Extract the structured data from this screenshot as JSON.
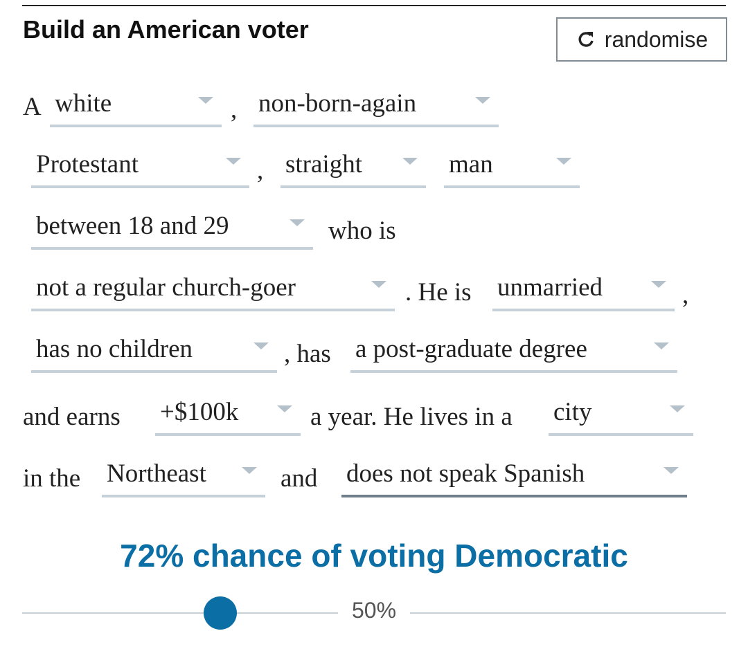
{
  "header": {
    "title": "Build an American voter",
    "button": "randomise"
  },
  "sentence": [
    {
      "text": "A"
    },
    {
      "option": "white"
    },
    {
      "text": ","
    },
    {
      "option": "non-born-again"
    },
    {
      "option": "Protestant"
    },
    {
      "text": ","
    },
    {
      "option": "straight"
    },
    {
      "option": "man"
    },
    {
      "option": "between 18 and 29"
    },
    {
      "text": "who is"
    },
    {
      "option": "not a regular church-goer"
    },
    {
      "text": ". He is"
    },
    {
      "option": "unmarried"
    },
    {
      "text": ","
    },
    {
      "option": "has no children"
    },
    {
      "text": ", has"
    },
    {
      "option": "a post-graduate degree"
    },
    {
      "text": "and earns"
    },
    {
      "option": "+$100k"
    },
    {
      "text": "a year. He lives in a"
    },
    {
      "option": "city"
    },
    {
      "text": "in the"
    },
    {
      "option": "Northeast"
    },
    {
      "text": "and"
    },
    {
      "option": "does not speak Spanish"
    }
  ],
  "result": "72% chance of voting Democratic",
  "slider": {
    "midpoint_label": "50%"
  }
}
